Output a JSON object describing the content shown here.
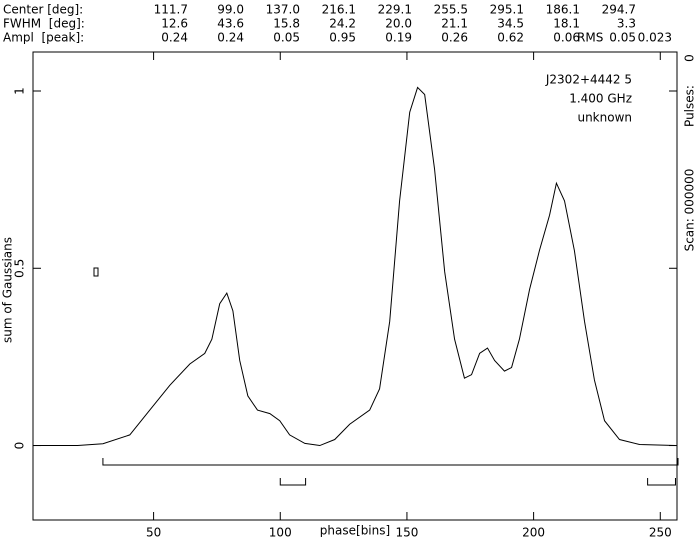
{
  "chart_data": {
    "type": "line",
    "components": {
      "rows": [
        {
          "label": "Center [deg]:",
          "cells": [
            "111.7",
            "99.0",
            "137.0",
            "216.1",
            "229.1",
            "255.5",
            "295.1",
            "186.1",
            "294.7"
          ]
        },
        {
          "label": "FWHM  [deg]:",
          "cells": [
            "12.6",
            "43.6",
            "15.8",
            "24.2",
            "20.0",
            "21.1",
            "34.5",
            "18.1",
            "3.3"
          ]
        },
        {
          "label": "Ampl  [peak]:",
          "cells": [
            "0.24",
            "0.24",
            "0.05",
            "0.95",
            "0.19",
            "0.26",
            "0.62",
            "0.06",
            "0.05"
          ]
        }
      ],
      "rms_label": "RMS",
      "rms_value": "0.023"
    },
    "annotations": [
      "J2302+4442 5",
      "1.400 GHz",
      "unknown"
    ],
    "side_label": "Scan: 000000",
    "pulses_label": "Pulses:",
    "pulses_value": "0",
    "xlabel": "phase[bins]",
    "ylabel": "sum of Gaussians",
    "x": [
      2.4,
      20,
      30,
      40.6,
      48.5,
      56.4,
      64.3,
      70.2,
      73,
      76.1,
      78.9,
      81.3,
      84,
      87.2,
      91,
      95.9,
      99.8,
      103.7,
      109.7,
      115.6,
      121.5,
      127.4,
      135.3,
      139.2,
      143.2,
      147.1,
      151.1,
      154.2,
      157,
      160.9,
      164.9,
      168.8,
      172.7,
      175.5,
      178.7,
      181.8,
      184.6,
      188.5,
      191.3,
      194.4,
      198.4,
      202.3,
      206.3,
      209,
      212.2,
      216.1,
      220.1,
      224,
      228,
      233.9,
      241.8,
      256
    ],
    "series": [
      {
        "color": "#000000",
        "values": [
          0,
          0,
          0.005,
          0.03,
          0.1,
          0.17,
          0.23,
          0.26,
          0.3,
          0.4,
          0.43,
          0.38,
          0.24,
          0.14,
          0.1,
          0.09,
          0.07,
          0.03,
          0.006,
          0,
          0.017,
          0.06,
          0.1,
          0.16,
          0.35,
          0.69,
          0.94,
          1.01,
          0.99,
          0.78,
          0.49,
          0.3,
          0.19,
          0.2,
          0.26,
          0.275,
          0.24,
          0.21,
          0.22,
          0.3,
          0.44,
          0.55,
          0.65,
          0.74,
          0.69,
          0.55,
          0.35,
          0.185,
          0.07,
          0.017,
          0.003,
          0
        ]
      }
    ],
    "brackets": [
      [
        30,
        257
      ],
      [
        100,
        110
      ],
      [
        245,
        256
      ]
    ],
    "xlim": [
      2.4,
      256.6
    ],
    "ylim": [
      -0.21,
      1.11
    ],
    "xticks": [
      50,
      100,
      150,
      200,
      250
    ],
    "yticks": [
      0,
      0.5,
      1
    ]
  }
}
